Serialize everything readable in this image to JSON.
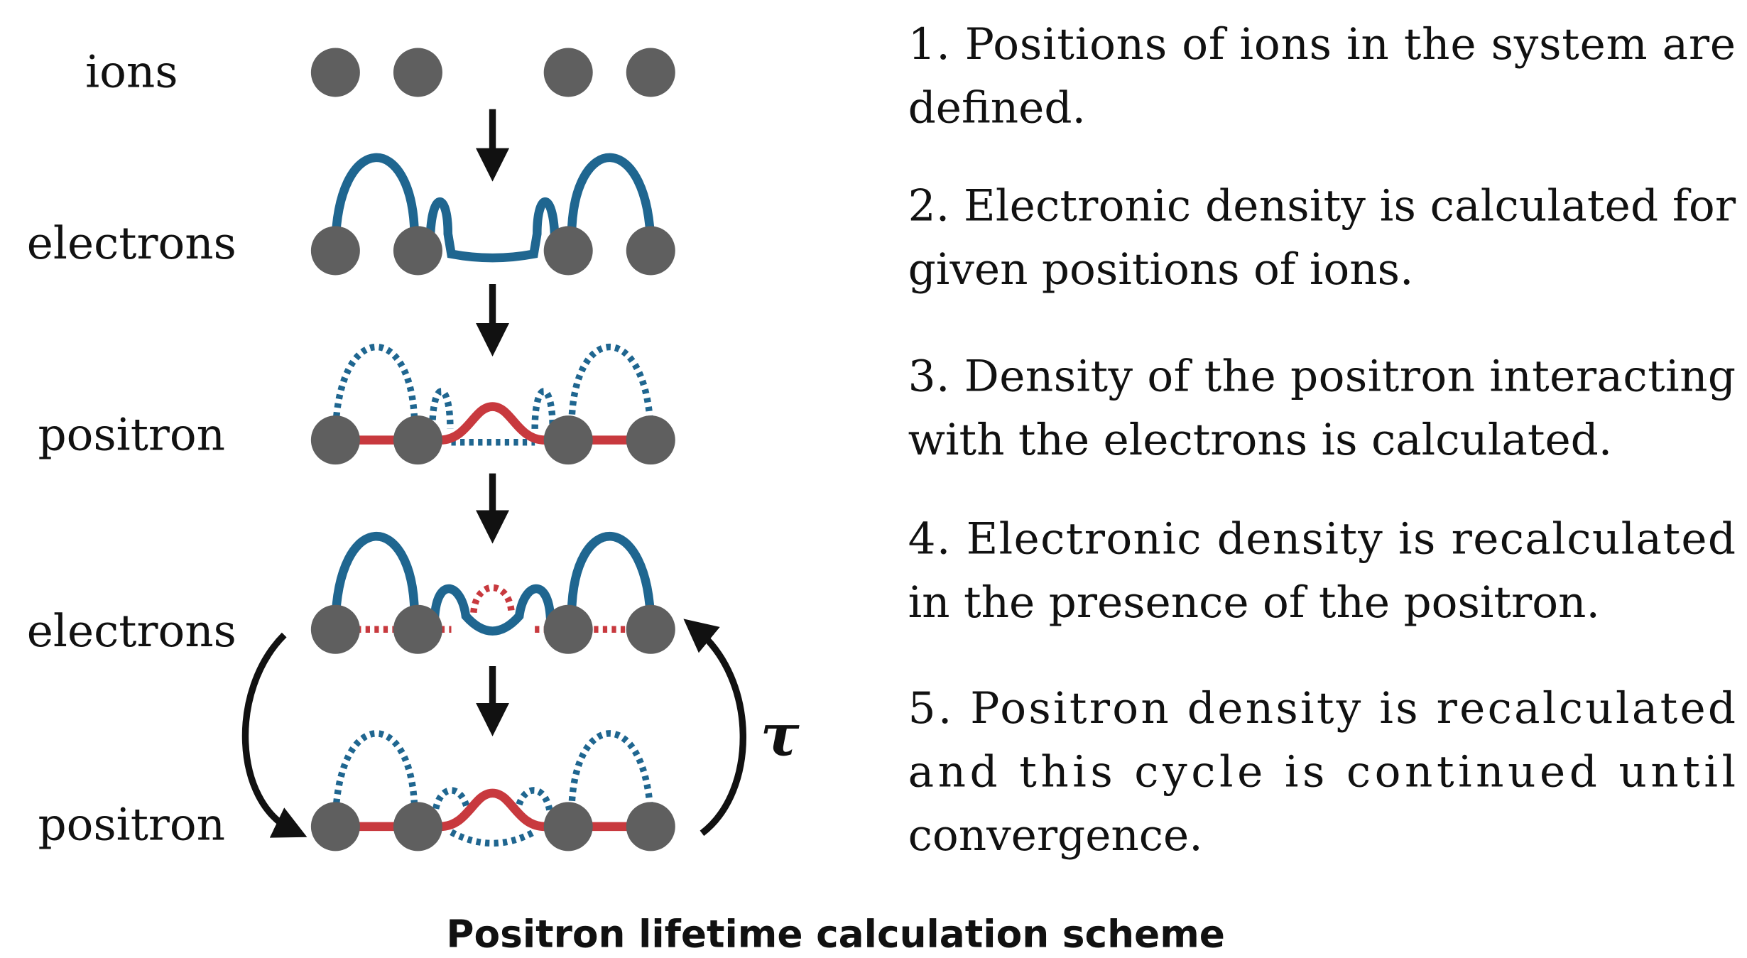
{
  "diagram": {
    "rows": [
      {
        "label": "ions"
      },
      {
        "label": "electrons"
      },
      {
        "label": "positron"
      },
      {
        "label": "electrons"
      },
      {
        "label": "positron"
      }
    ],
    "tau": "τ",
    "steps": [
      [
        "1. Positions of ions in the system are",
        "defined."
      ],
      [
        "2. Electronic density is calculated for",
        "given positions of ions."
      ],
      [
        "3. Density of the positron interacting",
        "with the electrons is calculated."
      ],
      [
        "4. Electronic density is recalculated",
        "in the presence of the positron."
      ],
      [
        "5. Positron density is recalculated",
        "and this cycle is continued until",
        "convergence."
      ]
    ],
    "title": "Positron lifetime calculation scheme"
  }
}
